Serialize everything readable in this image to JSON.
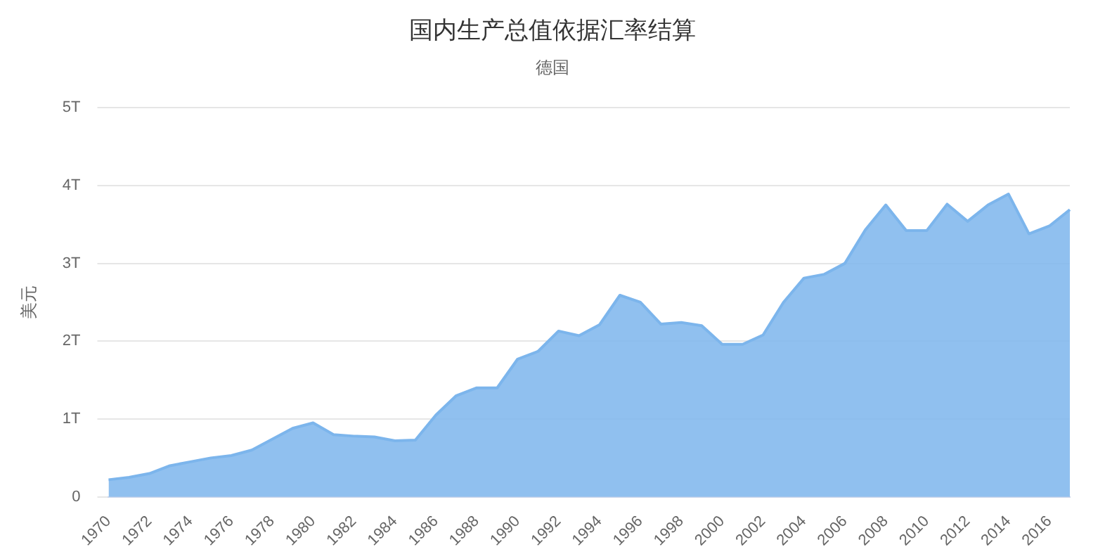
{
  "chart_data": {
    "type": "area",
    "title": "国内生产总值依据汇率结算",
    "subtitle": "德国",
    "ylabel": "美元",
    "categories": [
      "1970",
      null,
      "1972",
      null,
      "1974",
      null,
      "1976",
      null,
      "1978",
      null,
      "1980",
      null,
      "1982",
      null,
      "1984",
      null,
      "1986",
      null,
      "1988",
      null,
      "1990",
      null,
      "1992",
      null,
      "1994",
      null,
      "1996",
      null,
      "1998",
      null,
      "2000",
      null,
      "2002",
      null,
      "2004",
      null,
      "2006",
      null,
      "2008",
      null,
      "2010",
      null,
      "2012",
      null,
      "2014",
      null,
      "2016",
      null
    ],
    "series": [
      {
        "color": "#7cb5ec",
        "values": [
          0.22,
          0.25,
          0.3,
          0.4,
          0.45,
          0.5,
          0.53,
          0.6,
          0.74,
          0.88,
          0.95,
          0.8,
          0.78,
          0.77,
          0.72,
          0.73,
          1.05,
          1.3,
          1.4,
          1.4,
          1.77,
          1.87,
          2.13,
          2.07,
          2.21,
          2.59,
          2.5,
          2.22,
          2.24,
          2.2,
          1.96,
          1.96,
          2.08,
          2.5,
          2.81,
          2.86,
          3.0,
          3.43,
          3.75,
          3.42,
          3.42,
          3.76,
          3.54,
          3.75,
          3.89,
          3.38,
          3.48,
          3.69
        ]
      }
    ],
    "ylim": [
      0,
      5
    ],
    "yticks": [
      0,
      {
        "value": 1,
        "label": "1T"
      },
      {
        "value": 2,
        "label": "2T"
      },
      {
        "value": 3,
        "label": "3T"
      },
      {
        "value": 4,
        "label": "4T"
      },
      {
        "value": 5,
        "label": "5T"
      }
    ],
    "grid": "y",
    "legend": false,
    "marker": "none"
  }
}
